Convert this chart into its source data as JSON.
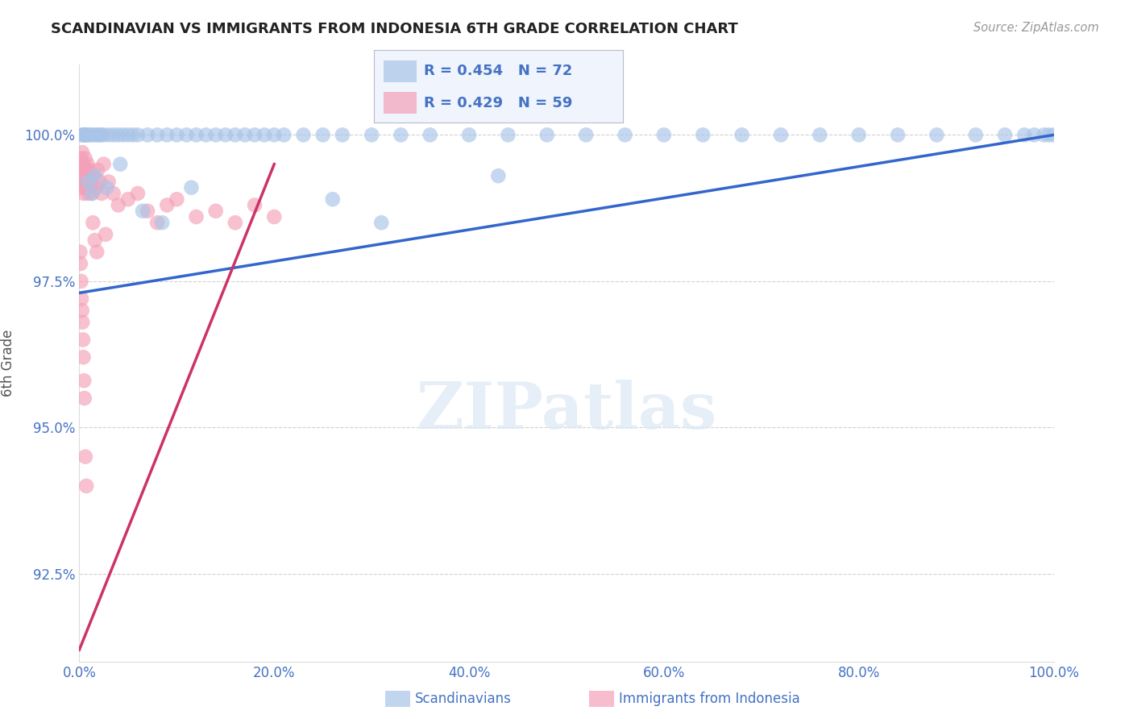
{
  "title": "SCANDINAVIAN VS IMMIGRANTS FROM INDONESIA 6TH GRADE CORRELATION CHART",
  "source": "Source: ZipAtlas.com",
  "ylabel": "6th Grade",
  "watermark": "ZIPatlas",
  "blue_label": "Scandinavians",
  "pink_label": "Immigrants from Indonesia",
  "blue_R": 0.454,
  "blue_N": 72,
  "pink_R": 0.429,
  "pink_N": 59,
  "blue_color": "#a8c4e8",
  "pink_color": "#f4a0b8",
  "blue_line_color": "#3366cc",
  "pink_line_color": "#cc3366",
  "xlim": [
    0.0,
    100.0
  ],
  "ylim": [
    91.0,
    101.2
  ],
  "yticks": [
    92.5,
    95.0,
    97.5,
    100.0
  ],
  "ytick_labels": [
    "92.5%",
    "95.0%",
    "97.5%",
    "100.0%"
  ],
  "xticks": [
    0.0,
    20.0,
    40.0,
    60.0,
    80.0,
    100.0
  ],
  "xtick_labels": [
    "0.0%",
    "20.0%",
    "40.0%",
    "60.0%",
    "80.0%",
    "100.0%"
  ],
  "blue_x": [
    0.3,
    0.4,
    0.5,
    0.6,
    0.7,
    0.8,
    1.0,
    1.2,
    1.5,
    1.8,
    2.0,
    2.2,
    2.5,
    3.0,
    3.5,
    4.0,
    4.5,
    5.0,
    5.5,
    6.0,
    7.0,
    8.0,
    9.0,
    10.0,
    11.0,
    12.0,
    13.0,
    14.0,
    15.0,
    16.0,
    17.0,
    18.0,
    19.0,
    20.0,
    21.0,
    23.0,
    25.0,
    27.0,
    30.0,
    33.0,
    36.0,
    40.0,
    44.0,
    48.0,
    52.0,
    56.0,
    60.0,
    64.0,
    68.0,
    72.0,
    76.0,
    80.0,
    84.0,
    88.0,
    92.0,
    95.0,
    97.0,
    98.0,
    99.0,
    99.5,
    100.0,
    0.9,
    1.3,
    1.6,
    2.8,
    4.2,
    6.5,
    8.5,
    11.5,
    26.0,
    31.0,
    43.0
  ],
  "blue_y": [
    100.0,
    100.0,
    100.0,
    100.0,
    100.0,
    100.0,
    100.0,
    100.0,
    100.0,
    100.0,
    100.0,
    100.0,
    100.0,
    100.0,
    100.0,
    100.0,
    100.0,
    100.0,
    100.0,
    100.0,
    100.0,
    100.0,
    100.0,
    100.0,
    100.0,
    100.0,
    100.0,
    100.0,
    100.0,
    100.0,
    100.0,
    100.0,
    100.0,
    100.0,
    100.0,
    100.0,
    100.0,
    100.0,
    100.0,
    100.0,
    100.0,
    100.0,
    100.0,
    100.0,
    100.0,
    100.0,
    100.0,
    100.0,
    100.0,
    100.0,
    100.0,
    100.0,
    100.0,
    100.0,
    100.0,
    100.0,
    100.0,
    100.0,
    100.0,
    100.0,
    100.0,
    99.2,
    99.0,
    99.3,
    99.1,
    99.5,
    98.7,
    98.5,
    99.1,
    98.9,
    98.5,
    99.3
  ],
  "pink_x": [
    0.05,
    0.1,
    0.15,
    0.2,
    0.25,
    0.3,
    0.35,
    0.4,
    0.45,
    0.5,
    0.55,
    0.6,
    0.65,
    0.7,
    0.75,
    0.8,
    0.85,
    0.9,
    0.95,
    1.0,
    1.1,
    1.2,
    1.3,
    1.5,
    1.7,
    1.9,
    2.1,
    2.3,
    2.5,
    3.0,
    3.5,
    4.0,
    5.0,
    6.0,
    7.0,
    8.0,
    9.0,
    10.0,
    12.0,
    14.0,
    16.0,
    18.0,
    20.0,
    0.08,
    0.12,
    0.18,
    0.22,
    0.28,
    0.32,
    0.38,
    0.42,
    0.48,
    0.52,
    0.62,
    0.72,
    1.4,
    1.6,
    1.8,
    2.7
  ],
  "pink_y": [
    99.5,
    99.2,
    99.6,
    99.4,
    99.1,
    99.7,
    99.3,
    99.5,
    99.0,
    99.4,
    99.2,
    99.6,
    99.1,
    99.4,
    99.3,
    99.2,
    99.5,
    99.0,
    99.3,
    99.1,
    99.4,
    99.2,
    99.0,
    99.3,
    99.1,
    99.4,
    99.2,
    99.0,
    99.5,
    99.2,
    99.0,
    98.8,
    98.9,
    99.0,
    98.7,
    98.5,
    98.8,
    98.9,
    98.6,
    98.7,
    98.5,
    98.8,
    98.6,
    98.0,
    97.8,
    97.5,
    97.2,
    97.0,
    96.8,
    96.5,
    96.2,
    95.8,
    95.5,
    94.5,
    94.0,
    98.5,
    98.2,
    98.0,
    98.3
  ]
}
